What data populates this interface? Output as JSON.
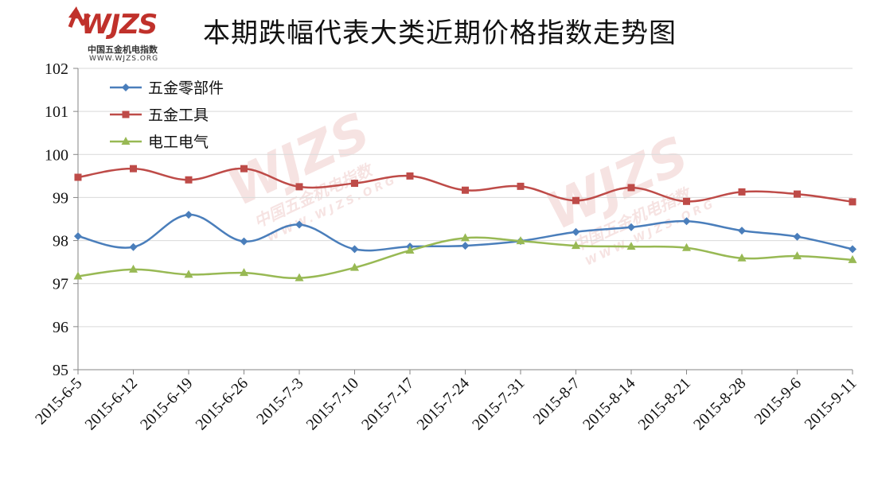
{
  "logo": {
    "mark": "WJZS",
    "chinese": "中国五金机电指数",
    "url": "WWW.WJZS.ORG"
  },
  "chart_data": {
    "type": "line",
    "title": "本期跌幅代表大类近期价格指数走势图",
    "xlabel": "",
    "ylabel": "",
    "ylim": [
      95,
      102
    ],
    "yticks": [
      "95",
      "96",
      "97",
      "98",
      "99",
      "100",
      "101",
      "102"
    ],
    "categories": [
      "2015-6-5",
      "2015-6-12",
      "2015-6-19",
      "2015-6-26",
      "2015-7-3",
      "2015-7-10",
      "2015-7-17",
      "2015-7-24",
      "2015-7-31",
      "2015-8-7",
      "2015-8-14",
      "2015-8-21",
      "2015-8-28",
      "2015-9-6",
      "2015-9-11"
    ],
    "legend_position": "top-left",
    "series": [
      {
        "name": "五金零部件",
        "color": "#4a7ebb",
        "marker": "diamond",
        "values": [
          98.1,
          97.85,
          98.6,
          97.98,
          98.37,
          97.8,
          97.86,
          97.88,
          97.99,
          98.2,
          98.31,
          98.45,
          98.23,
          98.09,
          97.8
        ]
      },
      {
        "name": "五金工具",
        "color": "#be4b48",
        "marker": "square",
        "values": [
          99.47,
          99.67,
          99.41,
          99.67,
          99.25,
          99.33,
          99.5,
          99.17,
          99.26,
          98.93,
          99.23,
          98.91,
          99.13,
          99.08,
          98.9
        ]
      },
      {
        "name": "电工电气",
        "color": "#98b954",
        "marker": "triangle",
        "values": [
          97.17,
          97.33,
          97.21,
          97.25,
          97.13,
          97.37,
          97.77,
          98.06,
          97.99,
          97.88,
          97.86,
          97.83,
          97.59,
          97.64,
          97.55
        ]
      }
    ]
  }
}
